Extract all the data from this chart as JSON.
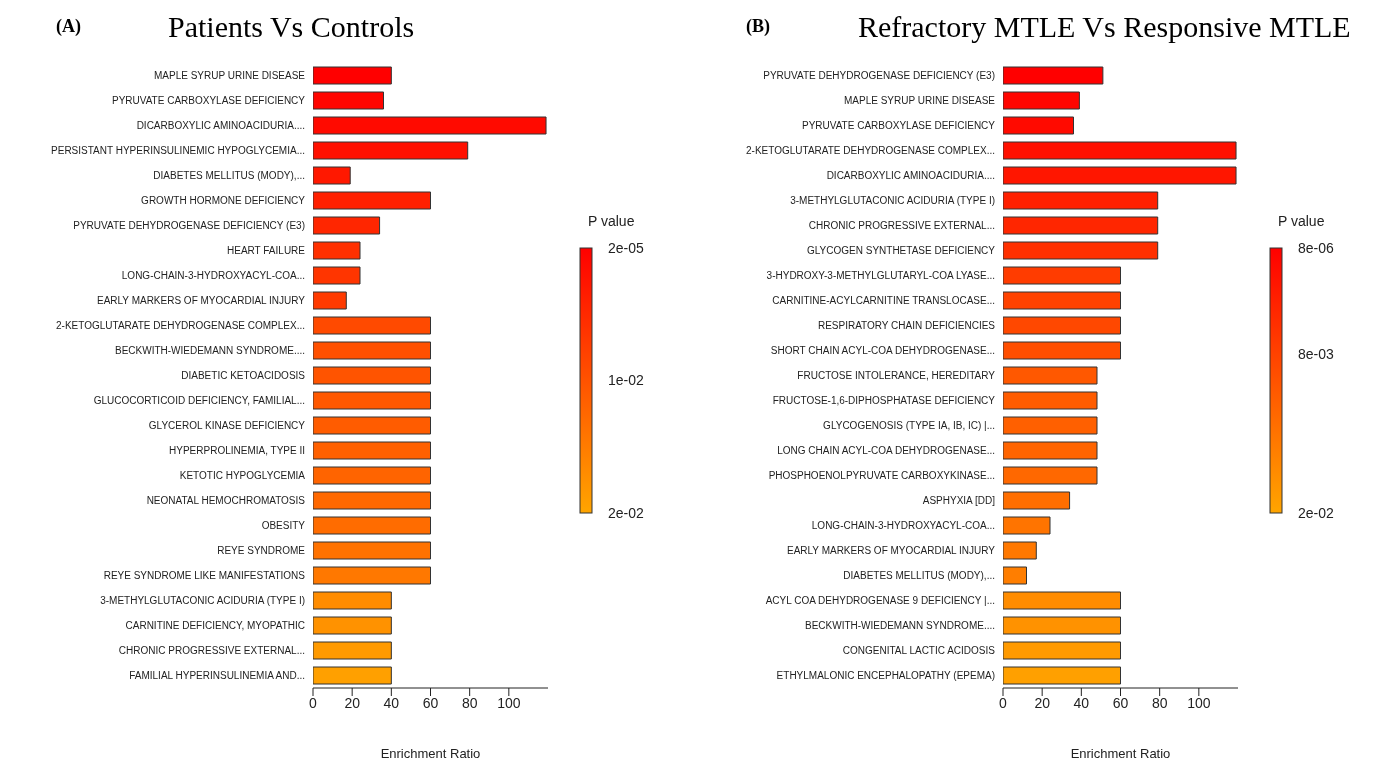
{
  "chart_data": [
    {
      "type": "bar",
      "orientation": "horizontal",
      "title": "Patients Vs Controls",
      "annotations": [
        "(A)"
      ],
      "xlabel": "Enrichment Ratio",
      "clabel": "P value",
      "categories": [
        "MAPLE SYRUP URINE DISEASE",
        "PYRUVATE CARBOXYLASE DEFICIENCY",
        "DICARBOXYLIC AMINOACIDURIA....",
        "PERSISTANT HYPERINSULINEMIC HYPOGLYCEMIA...",
        "DIABETES MELLITUS (MODY),...",
        "GROWTH HORMONE DEFICIENCY",
        "PYRUVATE DEHYDROGENASE DEFICIENCY (E3)",
        "HEART FAILURE",
        "LONG-CHAIN-3-HYDROXYACYL-COA...",
        "EARLY MARKERS OF MYOCARDIAL INJURY",
        "2-KETOGLUTARATE DEHYDROGENASE COMPLEX...",
        "BECKWITH-WIEDEMANN SYNDROME....",
        "DIABETIC KETOACIDOSIS",
        "GLUCOCORTICOID DEFICIENCY, FAMILIAL...",
        "GLYCEROL KINASE DEFICIENCY",
        "HYPERPROLINEMIA, TYPE II",
        "KETOTIC HYPOGLYCEMIA",
        "NEONATAL HEMOCHROMATOSIS",
        "OBESITY",
        "REYE SYNDROME",
        "REYE SYNDROME LIKE MANIFESTATIONS",
        "3-METHYLGLUTACONIC ACIDURIA (TYPE I)",
        "CARNITINE DEFICIENCY, MYOPATHIC",
        "CHRONIC PROGRESSIVE EXTERNAL...",
        "FAMILIAL HYPERINSULINEMIA AND..."
      ],
      "values": [
        40,
        36,
        119,
        79,
        19,
        60,
        34,
        24,
        24,
        17,
        60,
        60,
        60,
        60,
        60,
        60,
        60,
        60,
        60,
        60,
        60,
        40,
        40,
        40,
        40
      ],
      "colors": [
        "#ff0000",
        "#ff0500",
        "#ff0a00",
        "#ff1000",
        "#ff1800",
        "#ff2000",
        "#ff2600",
        "#ff3000",
        "#ff3500",
        "#ff3a00",
        "#ff4a00",
        "#ff5000",
        "#ff5400",
        "#ff5800",
        "#ff5c00",
        "#ff6000",
        "#ff6400",
        "#ff6800",
        "#ff6c00",
        "#ff7200",
        "#ff7800",
        "#ff8c00",
        "#ff9200",
        "#ff9a00",
        "#ffa000"
      ],
      "xlim": [
        0,
        120
      ],
      "xticks": [
        0,
        20,
        40,
        60,
        80,
        100
      ],
      "clim": [
        2e-05,
        0.02
      ],
      "cticks": [
        {
          "value": 2e-05,
          "label": "2e-05"
        },
        {
          "value": 0.01,
          "label": "1e-02"
        },
        {
          "value": 0.02,
          "label": "2e-02"
        }
      ]
    },
    {
      "type": "bar",
      "orientation": "horizontal",
      "title": "Refractory MTLE Vs Responsive MTLE",
      "annotations": [
        "(B)"
      ],
      "xlabel": "Enrichment Ratio",
      "clabel": "P value",
      "categories": [
        "PYRUVATE DEHYDROGENASE DEFICIENCY (E3)",
        "MAPLE SYRUP URINE DISEASE",
        "PYRUVATE CARBOXYLASE DEFICIENCY",
        "2-KETOGLUTARATE DEHYDROGENASE COMPLEX...",
        "DICARBOXYLIC AMINOACIDURIA....",
        "3-METHYLGLUTACONIC ACIDURIA (TYPE I)",
        "CHRONIC PROGRESSIVE EXTERNAL...",
        "GLYCOGEN SYNTHETASE DEFICIENCY",
        "3-HYDROXY-3-METHYLGLUTARYL-COA LYASE...",
        "CARNITINE-ACYLCARNITINE TRANSLOCASE...",
        "RESPIRATORY CHAIN DEFICIENCIES",
        "SHORT CHAIN ACYL-COA DEHYDROGENASE...",
        "FRUCTOSE INTOLERANCE, HEREDITARY",
        "FRUCTOSE-1,6-DIPHOSPHATASE DEFICIENCY",
        "GLYCOGENOSIS (TYPE IA, IB, IC) |...",
        "LONG CHAIN ACYL-COA DEHYDROGENASE...",
        "PHOSPHOENOLPYRUVATE CARBOXYKINASE...",
        "ASPHYXIA [DD]",
        "LONG-CHAIN-3-HYDROXYACYL-COA...",
        "EARLY MARKERS OF MYOCARDIAL INJURY",
        "DIABETES MELLITUS (MODY),...",
        "ACYL COA DEHYDROGENASE 9 DEFICIENCY |...",
        "BECKWITH-WIEDEMANN SYNDROME....",
        "CONGENITAL LACTIC ACIDOSIS",
        "ETHYLMALONIC ENCEPHALOPATHY (EPEMA)"
      ],
      "values": [
        51,
        39,
        36,
        119,
        119,
        79,
        79,
        79,
        60,
        60,
        60,
        60,
        48,
        48,
        48,
        48,
        48,
        34,
        24,
        17,
        12,
        60,
        60,
        60,
        60
      ],
      "colors": [
        "#ff0000",
        "#ff0500",
        "#ff0a00",
        "#ff1000",
        "#ff1600",
        "#ff2000",
        "#ff2600",
        "#ff3000",
        "#ff3c00",
        "#ff4200",
        "#ff4800",
        "#ff4e00",
        "#ff5800",
        "#ff5c00",
        "#ff6000",
        "#ff6400",
        "#ff6800",
        "#ff6e00",
        "#ff7400",
        "#ff7800",
        "#ff7e00",
        "#ff8c00",
        "#ff9200",
        "#ff9a00",
        "#ffa000"
      ],
      "xlim": [
        0,
        120
      ],
      "xticks": [
        0,
        20,
        40,
        60,
        80,
        100
      ],
      "clim": [
        8e-06,
        0.02
      ],
      "cticks": [
        {
          "value": 8e-06,
          "label": "8e-06"
        },
        {
          "value": 0.008,
          "label": "8e-03"
        },
        {
          "value": 0.02,
          "label": "2e-02"
        }
      ]
    }
  ]
}
